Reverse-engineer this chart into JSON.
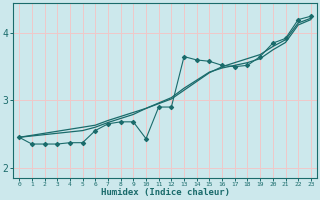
{
  "xlabel": "Humidex (Indice chaleur)",
  "bg_color": "#cce8ec",
  "grid_color": "#f0c8c8",
  "line_color": "#1a6b6b",
  "xlim": [
    -0.5,
    23.5
  ],
  "ylim": [
    1.85,
    4.45
  ],
  "xticks": [
    0,
    1,
    2,
    3,
    4,
    5,
    6,
    7,
    8,
    9,
    10,
    11,
    12,
    13,
    14,
    15,
    16,
    17,
    18,
    19,
    20,
    21,
    22,
    23
  ],
  "yticks": [
    2,
    3,
    4
  ],
  "jagged_x": [
    0,
    1,
    2,
    3,
    4,
    5,
    6,
    7,
    8,
    9,
    10,
    11,
    12,
    13,
    14,
    15,
    16,
    17,
    18,
    19,
    20,
    21,
    22,
    23
  ],
  "jagged_y": [
    2.45,
    2.35,
    2.35,
    2.35,
    2.37,
    2.37,
    2.55,
    2.65,
    2.68,
    2.68,
    2.43,
    2.9,
    2.9,
    3.65,
    3.6,
    3.58,
    3.52,
    3.5,
    3.52,
    3.65,
    3.85,
    3.92,
    4.2,
    4.25
  ],
  "trend1_x": [
    0,
    1,
    2,
    3,
    4,
    5,
    6,
    7,
    8,
    9,
    10,
    11,
    12,
    13,
    14,
    15,
    16,
    17,
    18,
    19,
    20,
    21,
    22,
    23
  ],
  "trend1_y": [
    2.45,
    2.48,
    2.51,
    2.54,
    2.57,
    2.6,
    2.63,
    2.7,
    2.76,
    2.82,
    2.88,
    2.95,
    3.02,
    3.15,
    3.28,
    3.41,
    3.5,
    3.56,
    3.62,
    3.68,
    3.8,
    3.9,
    4.15,
    4.22
  ],
  "trend2_x": [
    0,
    1,
    2,
    3,
    4,
    5,
    6,
    7,
    8,
    9,
    10,
    11,
    12,
    13,
    14,
    15,
    16,
    17,
    18,
    19,
    20,
    21,
    22,
    23
  ],
  "trend2_y": [
    2.45,
    2.47,
    2.49,
    2.51,
    2.53,
    2.55,
    2.6,
    2.67,
    2.73,
    2.79,
    2.88,
    2.96,
    3.04,
    3.18,
    3.3,
    3.42,
    3.48,
    3.52,
    3.56,
    3.62,
    3.75,
    3.86,
    4.12,
    4.2
  ]
}
